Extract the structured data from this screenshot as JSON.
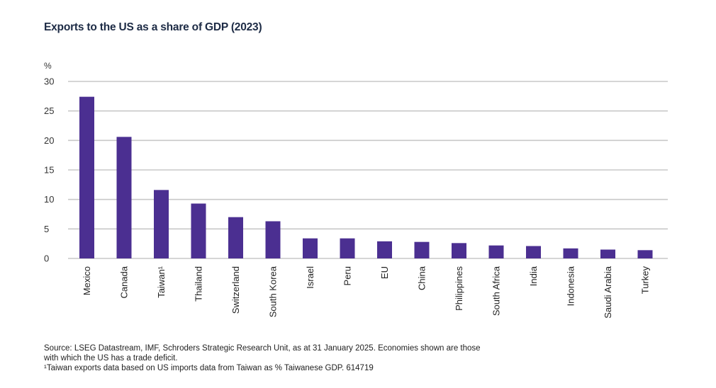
{
  "chart_data": {
    "type": "bar",
    "title": "Exports to the US as a share of GDP (2023)",
    "ylabel": "%",
    "xlabel": "",
    "ylim": [
      0,
      30
    ],
    "yticks": [
      0,
      5,
      10,
      15,
      20,
      25,
      30
    ],
    "grid": true,
    "bar_color": "#4b2f91",
    "categories": [
      "Mexico",
      "Canada",
      "Taiwan¹",
      "Thailand",
      "Switzerland",
      "South Korea",
      "Israel",
      "Peru",
      "EU",
      "China",
      "Philippines",
      "South Africa",
      "India",
      "Indonesia",
      "Saudi Arabia",
      "Turkey"
    ],
    "values": [
      27.4,
      20.6,
      11.6,
      9.3,
      7.0,
      6.3,
      3.4,
      3.4,
      2.9,
      2.8,
      2.6,
      2.2,
      2.1,
      1.7,
      1.5,
      1.4
    ]
  },
  "footer": {
    "line1": "Source: LSEG Datastream, IMF, Schroders Strategic Research Unit, as at 31 January 2025. Economies shown are those",
    "line2": "with which the US has a trade deficit.",
    "line3": "¹Taiwan exports data based on US imports data from Taiwan as % Taiwanese GDP. 614719"
  }
}
